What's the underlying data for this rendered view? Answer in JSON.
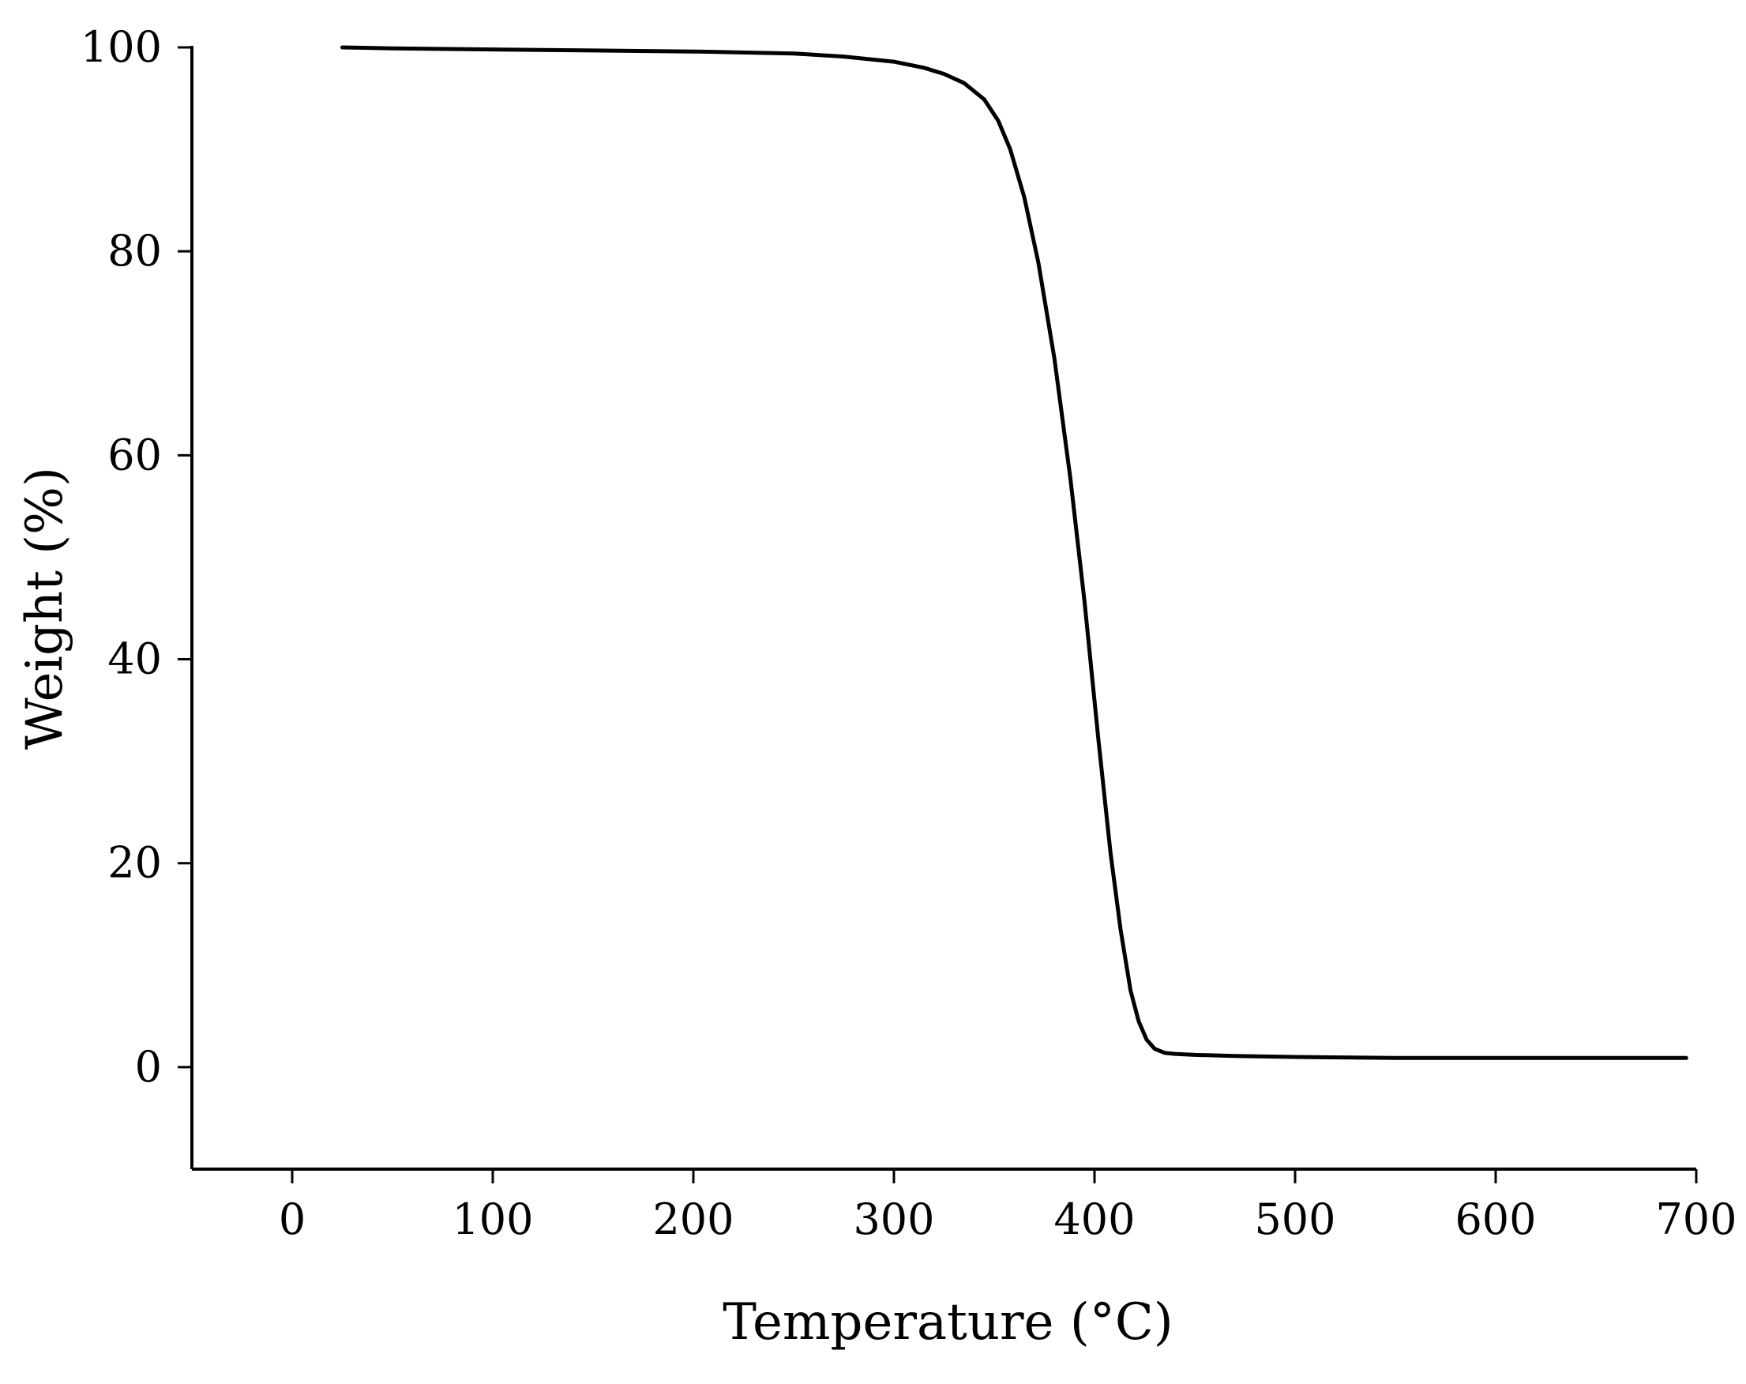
{
  "chart_data": {
    "type": "line",
    "title": "",
    "xlabel": "Temperature (°C)",
    "ylabel": "Weight (%)",
    "xlim": [
      -50,
      700
    ],
    "ylim": [
      -10,
      100
    ],
    "xticks": [
      0,
      100,
      200,
      300,
      400,
      500,
      600,
      700
    ],
    "yticks": [
      0,
      20,
      40,
      60,
      80,
      100
    ],
    "grid": false,
    "legend": "none",
    "line_color": "#000000",
    "series": [
      {
        "x": [
          25,
          50,
          100,
          150,
          200,
          250,
          275,
          300,
          315,
          325,
          335,
          345,
          352,
          358,
          365,
          372,
          380,
          388,
          395,
          402,
          408,
          413,
          418,
          422,
          426,
          430,
          435,
          440,
          450,
          470,
          500,
          550,
          600,
          650,
          695
        ],
        "y": [
          100,
          99.9,
          99.8,
          99.7,
          99.6,
          99.4,
          99.1,
          98.6,
          98.0,
          97.4,
          96.5,
          94.9,
          92.8,
          90.0,
          85.3,
          78.9,
          69.5,
          57.7,
          45.7,
          32.0,
          21.0,
          13.5,
          7.5,
          4.5,
          2.7,
          1.8,
          1.4,
          1.3,
          1.2,
          1.1,
          1.0,
          0.9,
          0.9,
          0.9,
          0.9
        ]
      }
    ]
  }
}
